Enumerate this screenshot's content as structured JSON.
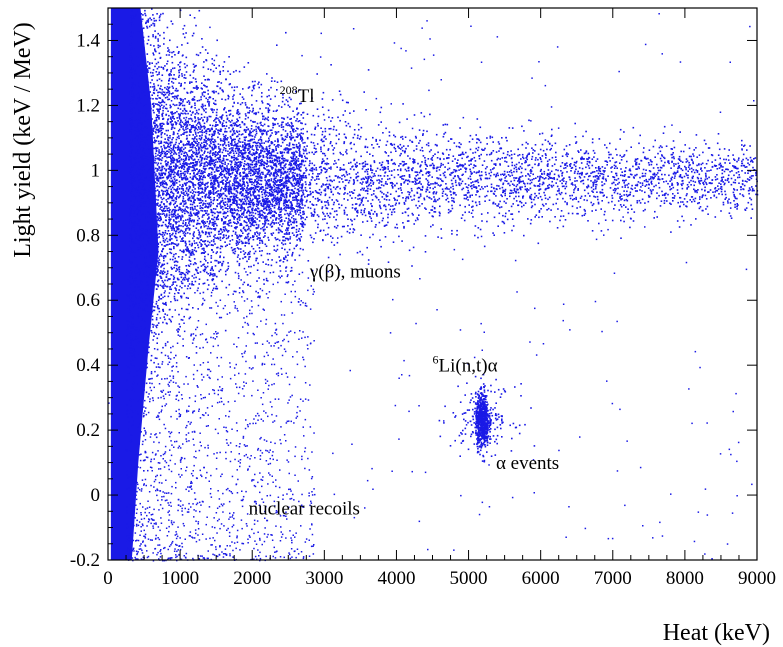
{
  "chart_data": {
    "type": "scatter",
    "title": "",
    "xlabel": "Heat (keV)",
    "ylabel": "Light yield (keV / MeV)",
    "xlim": [
      0,
      9000
    ],
    "ylim": [
      -0.2,
      1.5
    ],
    "x_ticks": [
      0,
      1000,
      2000,
      3000,
      4000,
      5000,
      6000,
      7000,
      8000,
      9000
    ],
    "x_tick_labels": [
      "0",
      "1000",
      "2000",
      "3000",
      "4000",
      "5000",
      "6000",
      "7000",
      "8000",
      "9000"
    ],
    "y_ticks": [
      -0.2,
      0,
      0.2,
      0.4,
      0.6,
      0.8,
      1,
      1.2,
      1.4
    ],
    "y_tick_labels": [
      "-0.2",
      "0",
      "0.2",
      "0.4",
      "0.6",
      "0.8",
      "1",
      "1.2",
      "1.4"
    ],
    "grid": false,
    "marker_color": "#1a1ae6",
    "populations": [
      {
        "label": "γ(β), muons",
        "x_range": [
          0,
          9000
        ],
        "y_center": 0.97
      },
      {
        "label": "α events",
        "x_center": 5200,
        "y_center": 0.23
      },
      {
        "label": "nuclear recoils",
        "x_range": [
          0,
          2000
        ],
        "y_range": [
          -0.2,
          0.3
        ]
      }
    ],
    "annotations": [
      {
        "id": "tl208",
        "sup": "208",
        "text": "Tl",
        "x": 2380,
        "y": 1.21
      },
      {
        "id": "gamma",
        "text": "γ(β), muons",
        "x": 2800,
        "y": 0.67
      },
      {
        "id": "li6",
        "sup": "6",
        "text": "Li(n,t)α",
        "x": 4500,
        "y": 0.38
      },
      {
        "id": "alpha",
        "text": "α events",
        "x": 5380,
        "y": 0.08
      },
      {
        "id": "nuclear",
        "text": "nuclear recoils",
        "x": 1950,
        "y": -0.06
      }
    ]
  }
}
